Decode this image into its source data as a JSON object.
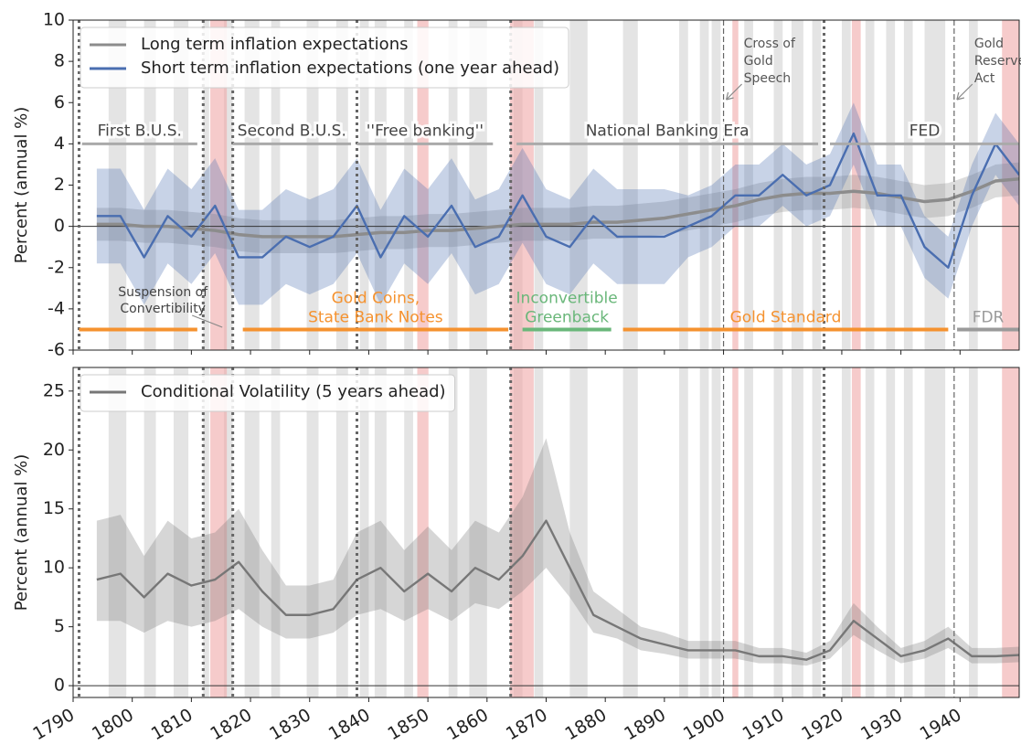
{
  "chart_data": [
    {
      "type": "line",
      "ylabel": "Percent (annual %)",
      "legend": "upper left",
      "grid": false,
      "xtick_labels": false,
      "xlim": [
        1790,
        1950
      ],
      "xticks": [
        1790,
        1800,
        1810,
        1820,
        1830,
        1840,
        1850,
        1860,
        1870,
        1880,
        1890,
        1900,
        1910,
        1920,
        1930,
        1940
      ],
      "ylim": [
        -6,
        10
      ],
      "yticks": [
        -6,
        -4,
        -2,
        0,
        2,
        4,
        6,
        8,
        10
      ],
      "hline": 0,
      "x": [
        1794,
        1798,
        1802,
        1806,
        1810,
        1814,
        1818,
        1822,
        1826,
        1830,
        1834,
        1838,
        1842,
        1846,
        1850,
        1854,
        1858,
        1862,
        1866,
        1870,
        1874,
        1878,
        1882,
        1886,
        1890,
        1894,
        1898,
        1902,
        1906,
        1910,
        1914,
        1918,
        1922,
        1926,
        1930,
        1934,
        1938,
        1942,
        1946,
        1950
      ],
      "series": [
        {
          "name": "Long term inflation expectations",
          "color": "#8c8c8c",
          "values": [
            0.1,
            0.1,
            0,
            0,
            -0.1,
            -0.2,
            -0.4,
            -0.5,
            -0.5,
            -0.5,
            -0.5,
            -0.4,
            -0.3,
            -0.3,
            -0.2,
            -0.2,
            -0.1,
            0,
            0.1,
            0.1,
            0.1,
            0.2,
            0.2,
            0.3,
            0.4,
            0.6,
            0.8,
            1.0,
            1.3,
            1.5,
            1.6,
            1.6,
            1.7,
            1.6,
            1.4,
            1.2,
            1.3,
            1.7,
            2.2,
            2.3
          ],
          "lower": [
            -0.7,
            -0.7,
            -0.8,
            -0.8,
            -0.9,
            -1,
            -1.2,
            -1.3,
            -1.3,
            -1.3,
            -1.3,
            -1.2,
            -1.1,
            -1.1,
            -1,
            -1,
            -0.9,
            -0.8,
            -0.7,
            -0.7,
            -0.7,
            -0.6,
            -0.6,
            -0.5,
            -0.4,
            -0.2,
            0,
            0.2,
            0.5,
            0.7,
            0.8,
            0.8,
            0.9,
            0.8,
            0.6,
            0.4,
            0.5,
            0.9,
            1.4,
            1.5
          ],
          "upper": [
            0.9,
            0.9,
            0.8,
            0.8,
            0.7,
            0.6,
            0.4,
            0.3,
            0.3,
            0.3,
            0.3,
            0.4,
            0.5,
            0.5,
            0.6,
            0.6,
            0.7,
            0.8,
            0.9,
            0.9,
            0.9,
            1,
            1,
            1.1,
            1.2,
            1.4,
            1.6,
            1.8,
            2.1,
            2.3,
            2.4,
            2.4,
            2.5,
            2.4,
            2.2,
            2,
            2.1,
            2.5,
            3,
            3.1
          ]
        },
        {
          "name": "Short term inflation expectations (one year ahead)",
          "color": "#4a6eb0",
          "values": [
            0.5,
            0.5,
            -1.5,
            0.5,
            -0.5,
            1.0,
            -1.5,
            -1.5,
            -0.5,
            -1.0,
            -0.5,
            1.0,
            -1.5,
            0.5,
            -0.5,
            1.0,
            -1.0,
            -0.5,
            1.5,
            -0.5,
            -1.0,
            0.5,
            -0.5,
            -0.5,
            -0.5,
            0,
            0.5,
            1.5,
            1.5,
            2.5,
            1.5,
            2.0,
            4.5,
            1.5,
            1.5,
            -1.0,
            -2.0,
            1.5,
            4.0,
            2.5
          ],
          "lower": [
            -1.8,
            -1.8,
            -3.8,
            -1.8,
            -2.8,
            -1.3,
            -3.8,
            -3.8,
            -2.8,
            -3.3,
            -2.8,
            -1.3,
            -3.8,
            -1.8,
            -2.8,
            -1.3,
            -3.3,
            -2.8,
            -0.8,
            -2.8,
            -3.3,
            -1.8,
            -2.8,
            -2.8,
            -2.8,
            -1.5,
            -1,
            0,
            0,
            1,
            0,
            0.5,
            3,
            0,
            0,
            -2.5,
            -3.5,
            0,
            2.5,
            1
          ],
          "upper": [
            2.8,
            2.8,
            0.8,
            2.8,
            1.8,
            3.3,
            0.8,
            0.8,
            1.8,
            1.3,
            1.8,
            3.3,
            0.8,
            2.8,
            1.8,
            3.3,
            1.3,
            1.8,
            3.8,
            1.8,
            1.3,
            2.8,
            1.8,
            1.8,
            1.8,
            1.5,
            2,
            3,
            3,
            4,
            3,
            3.5,
            6,
            3,
            3,
            0.5,
            -0.5,
            3,
            5.5,
            4
          ]
        }
      ],
      "recessions": [
        [
          1796,
          1799
        ],
        [
          1802,
          1804
        ],
        [
          1807,
          1809.5
        ],
        [
          1812,
          1813
        ],
        [
          1815.5,
          1817
        ],
        [
          1819,
          1821.5
        ],
        [
          1823.5,
          1825
        ],
        [
          1829.5,
          1831.5
        ],
        [
          1834.5,
          1836.5
        ],
        [
          1838.5,
          1840
        ],
        [
          1841,
          1843
        ],
        [
          1846,
          1847.5
        ],
        [
          1853.5,
          1855
        ],
        [
          1857,
          1860
        ],
        [
          1864.5,
          1866
        ],
        [
          1868,
          1869.5
        ],
        [
          1874,
          1877
        ],
        [
          1883,
          1885.5
        ],
        [
          1892.5,
          1894
        ],
        [
          1896,
          1897.5
        ],
        [
          1898,
          1899.5
        ],
        [
          1903.5,
          1905
        ],
        [
          1908.5,
          1910
        ],
        [
          1911.5,
          1913.5
        ],
        [
          1915,
          1916.5
        ],
        [
          1920,
          1921.5
        ],
        [
          1924,
          1925.5
        ],
        [
          1927.5,
          1929
        ],
        [
          1930.5,
          1932
        ],
        [
          1934,
          1937.5
        ],
        [
          1941.5,
          1943
        ]
      ],
      "wars": [
        [
          1813.2,
          1816
        ],
        [
          1848.2,
          1850.1
        ],
        [
          1863.9,
          1867.9
        ],
        [
          1901.5,
          1902.5
        ],
        [
          1921.7,
          1923.2
        ],
        [
          1947.1,
          1950
        ]
      ],
      "regime_lines": [
        1791,
        1812,
        1817,
        1838,
        1864,
        1917
      ],
      "events": [
        {
          "lines": [
            "Cross of",
            "Gold",
            "Speech"
          ],
          "x": 1900
        },
        {
          "lines": [
            "Gold",
            "Reserve",
            "Act"
          ],
          "x": 1939
        }
      ],
      "eras": [
        {
          "label": "First B.U.S.",
          "start": 1791.5,
          "end": 1811,
          "y": 4
        },
        {
          "label": "Second B.U.S.",
          "start": 1817,
          "end": 1837,
          "y": 4
        },
        {
          "label": "''Free banking''",
          "start": 1838,
          "end": 1861,
          "y": 4
        },
        {
          "label": "National Banking Era",
          "start": 1865,
          "end": 1916,
          "y": 4
        },
        {
          "label": "FED",
          "start": 1918,
          "end": 1950,
          "y": 4
        }
      ],
      "standards": [
        {
          "start": 1791,
          "end": 1811,
          "y": -5,
          "color": "#f5922f"
        },
        {
          "label": [
            "Gold Coins,",
            "State Bank Notes"
          ],
          "start": 1818.7,
          "end": 1863.6,
          "y": -5,
          "color": "#f5922f"
        },
        {
          "label": [
            "Inconvertible",
            "Greenback"
          ],
          "start": 1866,
          "end": 1881,
          "y": -5,
          "color": "#6ab77a"
        },
        {
          "label": [
            "Gold Standard"
          ],
          "start": 1883,
          "end": 1938,
          "y": -5,
          "color": "#f5922f"
        },
        {
          "label": [
            "FDR"
          ],
          "start": 1939.5,
          "end": 1950,
          "y": -5,
          "color": "#9a9a9a"
        }
      ],
      "annotation": {
        "lines": [
          "Suspension of",
          "Convertibility"
        ],
        "x": 1816
      }
    },
    {
      "type": "line",
      "ylabel": "Percent (annual %)",
      "legend": "upper left",
      "grid": false,
      "xtick_labels": true,
      "xlim": [
        1790,
        1950
      ],
      "xticks": [
        1790,
        1800,
        1810,
        1820,
        1830,
        1840,
        1850,
        1860,
        1870,
        1880,
        1890,
        1900,
        1910,
        1920,
        1930,
        1940
      ],
      "ylim": [
        -1,
        27
      ],
      "yticks": [
        0,
        5,
        10,
        15,
        20,
        25
      ],
      "hline": 0,
      "x": [
        1794,
        1798,
        1802,
        1806,
        1810,
        1814,
        1818,
        1822,
        1826,
        1830,
        1834,
        1838,
        1842,
        1846,
        1850,
        1854,
        1858,
        1862,
        1866,
        1870,
        1874,
        1878,
        1882,
        1886,
        1890,
        1894,
        1898,
        1902,
        1906,
        1910,
        1914,
        1918,
        1922,
        1926,
        1930,
        1934,
        1938,
        1942,
        1946,
        1950
      ],
      "series": [
        {
          "name": "Conditional Volatility (5 years ahead)",
          "color": "#777777",
          "values": [
            9,
            9.5,
            7.5,
            9.5,
            8.5,
            9,
            10.5,
            8,
            6,
            6,
            6.5,
            9,
            10,
            8,
            9.5,
            8,
            10,
            9,
            11,
            14,
            10,
            6,
            5,
            4,
            3.5,
            3,
            3,
            3,
            2.5,
            2.5,
            2.2,
            3,
            5.5,
            4,
            2.5,
            3,
            4,
            2.5,
            2.5,
            2.6
          ],
          "lower": [
            5.5,
            5.5,
            4.5,
            5.5,
            5,
            5.5,
            6.5,
            5,
            4,
            4,
            4.5,
            6,
            6.5,
            5.5,
            6.5,
            5.5,
            7,
            6.5,
            8,
            10,
            7.5,
            4.5,
            4,
            3,
            2.7,
            2.3,
            2.3,
            2.3,
            1.9,
            1.9,
            1.7,
            2.3,
            4.3,
            3,
            1.9,
            2.3,
            3.2,
            1.9,
            1.9,
            2
          ],
          "upper": [
            14,
            14.5,
            11,
            14,
            12.5,
            13,
            15,
            11.5,
            8.5,
            8.5,
            9,
            13,
            14,
            11.5,
            13.5,
            11.5,
            14,
            13,
            16,
            21,
            13,
            8,
            6.5,
            5,
            4.5,
            3.8,
            3.8,
            3.8,
            3.2,
            3.2,
            2.8,
            3.8,
            7,
            5,
            3.2,
            3.8,
            5,
            3.2,
            3.2,
            3.3
          ]
        }
      ],
      "recessions": [
        [
          1796,
          1799
        ],
        [
          1802,
          1804
        ],
        [
          1807,
          1809.5
        ],
        [
          1812,
          1813
        ],
        [
          1815.5,
          1817
        ],
        [
          1819,
          1821.5
        ],
        [
          1823.5,
          1825
        ],
        [
          1829.5,
          1831.5
        ],
        [
          1834.5,
          1836.5
        ],
        [
          1838.5,
          1840
        ],
        [
          1841,
          1843
        ],
        [
          1846,
          1847.5
        ],
        [
          1853.5,
          1855
        ],
        [
          1857,
          1860
        ],
        [
          1864.5,
          1866
        ],
        [
          1868,
          1869.5
        ],
        [
          1874,
          1877
        ],
        [
          1883,
          1885.5
        ],
        [
          1892.5,
          1894
        ],
        [
          1896,
          1897.5
        ],
        [
          1898,
          1899.5
        ],
        [
          1903.5,
          1905
        ],
        [
          1908.5,
          1910
        ],
        [
          1911.5,
          1913.5
        ],
        [
          1915,
          1916.5
        ],
        [
          1920,
          1921.5
        ],
        [
          1924,
          1925.5
        ],
        [
          1927.5,
          1929
        ],
        [
          1930.5,
          1932
        ],
        [
          1934,
          1937.5
        ],
        [
          1941.5,
          1943
        ]
      ],
      "wars": [
        [
          1813.2,
          1816
        ],
        [
          1848.2,
          1850.1
        ],
        [
          1863.9,
          1867.9
        ],
        [
          1901.5,
          1902.5
        ],
        [
          1921.7,
          1923.2
        ],
        [
          1947.1,
          1950
        ]
      ],
      "regime_lines": [
        1791,
        1812,
        1817,
        1838,
        1864,
        1917
      ],
      "events": [
        {
          "x": 1900
        },
        {
          "x": 1939
        }
      ]
    }
  ]
}
